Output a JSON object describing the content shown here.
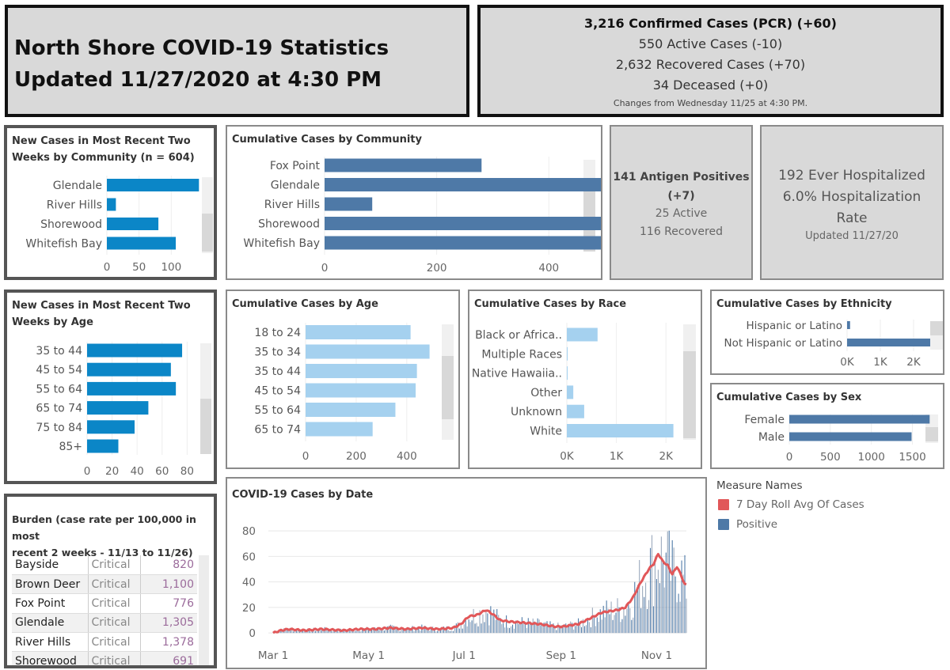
{
  "header": {
    "title_line1": "North Shore COVID-19 Statistics",
    "title_line2": "Updated 11/27/2020 at 4:30 PM"
  },
  "summary": {
    "confirmed": "3,216  Confirmed Cases (PCR) (+60)",
    "active": "550  Active Cases (-10)",
    "recovered": "2,632  Recovered Cases (+70)",
    "deceased": "34  Deceased (+0)",
    "note": "Changes from Wednesday 11/25  at 4:30 PM."
  },
  "antigen": {
    "line1": "141 Antigen Positives",
    "line2": "(+7)",
    "active": "25 Active",
    "recovered": "116 Recovered"
  },
  "hospital": {
    "ever": "192 Ever Hospitalized",
    "rate": "6.0%  Hospitalization",
    "rate2": "Rate",
    "updated": "Updated 11/27/20"
  },
  "colors": {
    "bright_blue": "#0b86c7",
    "steel_blue": "#4e79a7",
    "light_blue": "#a5d1ef",
    "red_line": "#e15759"
  },
  "legend": {
    "title": "Measure Names",
    "items": [
      {
        "label": "7 Day Roll Avg Of Cases",
        "color": "#e15759"
      },
      {
        "label": "Positive",
        "color": "#4e79a7"
      }
    ]
  },
  "burden": {
    "title_line1": "Burden (case rate per 100,000 in most",
    "title_line2": "recent 2 weeks - 11/13 to 11/26)",
    "rows": [
      {
        "name": "Bayside",
        "status": "Critical",
        "value": "820"
      },
      {
        "name": "Brown Deer",
        "status": "Critical",
        "value": "1,100"
      },
      {
        "name": "Fox Point",
        "status": "Critical",
        "value": "776"
      },
      {
        "name": "Glendale",
        "status": "Critical",
        "value": "1,305"
      },
      {
        "name": "River Hills",
        "status": "Critical",
        "value": "1,378"
      },
      {
        "name": "Shorewood",
        "status": "Critical",
        "value": "691"
      }
    ]
  },
  "chart_data": [
    {
      "id": "new_community",
      "type": "bar",
      "title_line1": "New Cases in Most Recent Two",
      "title_line2": "Weeks by Community (n = 604)",
      "categories": [
        "Glendale",
        "River Hills",
        "Shorewood",
        "Whitefish Bay"
      ],
      "values": [
        143,
        14,
        80,
        107
      ],
      "xlim": [
        0,
        150
      ],
      "ticks": [
        0,
        50,
        100
      ],
      "tick_labels": [
        "0",
        "50",
        "100"
      ]
    },
    {
      "id": "cum_community",
      "type": "bar",
      "title": "Cumulative Cases by Community",
      "categories": [
        "Fox Point",
        "Glendale",
        "River Hills",
        "Shorewood",
        "Whitefish Bay"
      ],
      "values": [
        280,
        830,
        85,
        530,
        597
      ],
      "xlim": [
        0,
        860
      ],
      "ticks": [
        0,
        200,
        400,
        600,
        800
      ],
      "tick_labels": [
        "0",
        "200",
        "400",
        "600",
        "800"
      ]
    },
    {
      "id": "new_age",
      "type": "bar",
      "title_line1": "New Cases in Most Recent Two",
      "title_line2": "Weeks by Age",
      "categories": [
        "35 to 44",
        "45 to 54",
        "55 to 64",
        "65 to 74",
        "75 to 84",
        "85+"
      ],
      "values": [
        76,
        67,
        71,
        49,
        38,
        25
      ],
      "xlim": [
        0,
        88
      ],
      "ticks": [
        0,
        20,
        40,
        60,
        80
      ],
      "tick_labels": [
        "0",
        "20",
        "40",
        "60",
        "80"
      ]
    },
    {
      "id": "cum_age",
      "type": "bar",
      "title": "Cumulative Cases by Age",
      "categories": [
        "18 to 24",
        "35 to 34",
        "35 to 44",
        "45 to 54",
        "55 to 64",
        "65 to 74"
      ],
      "values": [
        415,
        490,
        440,
        435,
        355,
        265
      ],
      "xlim": [
        0,
        510
      ],
      "ticks": [
        0,
        200,
        400
      ],
      "tick_labels": [
        "0",
        "200",
        "400"
      ]
    },
    {
      "id": "cum_race",
      "type": "bar",
      "title": "Cumulative Cases by Race",
      "categories": [
        "Black or Africa..",
        "Multiple Races",
        "Native Hawaiia..",
        "Other",
        "Unknown",
        "White"
      ],
      "values": [
        620,
        15,
        10,
        130,
        350,
        2150
      ],
      "xlim": [
        0,
        2300
      ],
      "ticks": [
        0,
        1000,
        2000
      ],
      "tick_labels": [
        "0K",
        "1K",
        "2K"
      ]
    },
    {
      "id": "cum_ethnicity",
      "type": "bar",
      "title": "Cumulative Cases by Ethnicity",
      "categories": [
        "Hispanic or Latino",
        "Not Hispanic or Latino"
      ],
      "values": [
        90,
        2550
      ],
      "xlim": [
        0,
        2500
      ],
      "ticks": [
        0,
        1000,
        2000
      ],
      "tick_labels": [
        "0K",
        "1K",
        "2K"
      ]
    },
    {
      "id": "cum_sex",
      "type": "bar",
      "title": "Cumulative Cases by Sex",
      "categories": [
        "Female",
        "Male"
      ],
      "values": [
        1710,
        1490
      ],
      "xlim": [
        0,
        1900
      ],
      "ticks": [
        0,
        500,
        1000,
        1500
      ],
      "tick_labels": [
        "0",
        "500",
        "1000",
        "1500"
      ]
    },
    {
      "id": "by_date",
      "type": "bar",
      "title": "COVID-19 Cases by Date",
      "xlabels": [
        "Mar 1",
        "May 1",
        "Jul 1",
        "Sep 1",
        "Nov 1"
      ],
      "ylim": [
        -3,
        90
      ],
      "yticks": [
        0,
        20,
        40,
        60,
        80
      ],
      "series": [
        {
          "name": "Positive",
          "kind": "bar",
          "color": "#4e79a7"
        },
        {
          "name": "7 Day Roll Avg Of Cases",
          "kind": "line",
          "color": "#e15759"
        }
      ],
      "avg_anchors": [
        [
          0,
          0
        ],
        [
          5,
          2
        ],
        [
          10,
          3
        ],
        [
          20,
          2
        ],
        [
          30,
          3
        ],
        [
          45,
          2
        ],
        [
          55,
          3
        ],
        [
          65,
          3
        ],
        [
          75,
          4
        ],
        [
          85,
          3
        ],
        [
          95,
          4
        ],
        [
          105,
          3
        ],
        [
          115,
          4
        ],
        [
          120,
          7
        ],
        [
          125,
          13
        ],
        [
          130,
          14
        ],
        [
          136,
          18
        ],
        [
          140,
          15
        ],
        [
          145,
          10
        ],
        [
          150,
          9
        ],
        [
          160,
          8
        ],
        [
          170,
          7
        ],
        [
          180,
          5
        ],
        [
          185,
          5
        ],
        [
          195,
          7
        ],
        [
          200,
          10
        ],
        [
          205,
          13
        ],
        [
          210,
          16
        ],
        [
          215,
          17
        ],
        [
          220,
          18
        ],
        [
          225,
          20
        ],
        [
          230,
          28
        ],
        [
          235,
          40
        ],
        [
          240,
          50
        ],
        [
          243,
          54
        ],
        [
          246,
          62
        ],
        [
          249,
          56
        ],
        [
          252,
          53
        ],
        [
          255,
          46
        ],
        [
          258,
          52
        ],
        [
          261,
          44
        ],
        [
          263,
          38
        ]
      ]
    }
  ]
}
